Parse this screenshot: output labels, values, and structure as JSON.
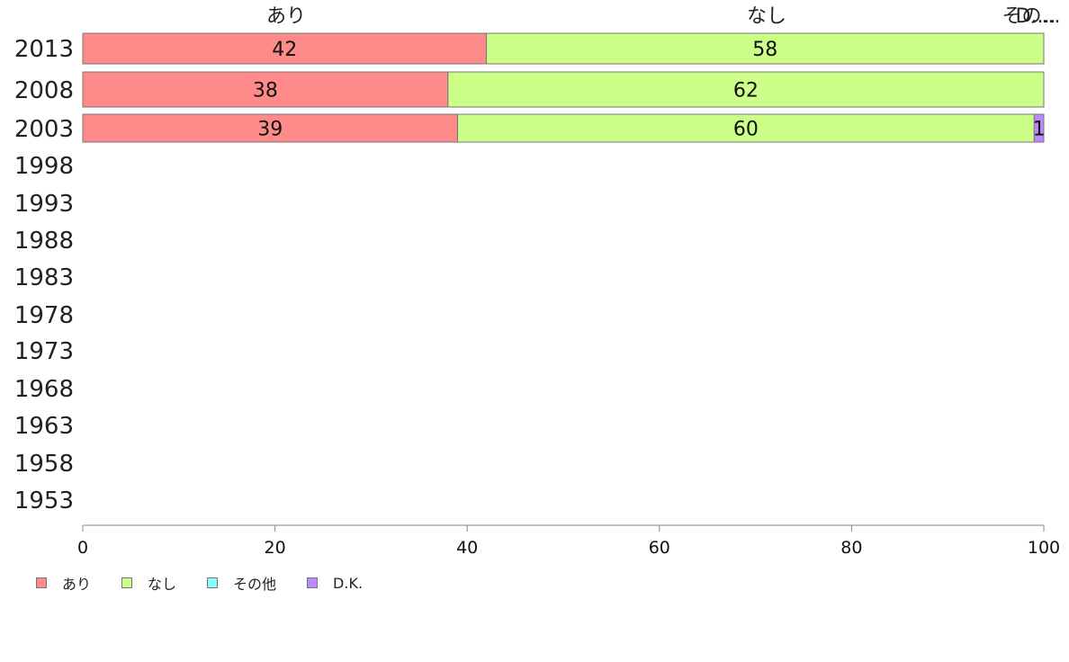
{
  "chart_data": {
    "type": "bar",
    "orientation": "horizontal",
    "stacked": true,
    "categories": [
      "2013",
      "2008",
      "2003",
      "1998",
      "1993",
      "1988",
      "1983",
      "1978",
      "1973",
      "1968",
      "1963",
      "1958",
      "1953"
    ],
    "series": [
      {
        "name": "あり",
        "color": "#ff8a8a",
        "values": [
          42,
          38,
          39,
          null,
          null,
          null,
          null,
          null,
          null,
          null,
          null,
          null,
          null
        ]
      },
      {
        "name": "なし",
        "color": "#ccff88",
        "values": [
          58,
          62,
          60,
          null,
          null,
          null,
          null,
          null,
          null,
          null,
          null,
          null,
          null
        ]
      },
      {
        "name": "その他",
        "color": "#88ffff",
        "values": [
          0,
          0,
          0,
          null,
          null,
          null,
          null,
          null,
          null,
          null,
          null,
          null,
          null
        ]
      },
      {
        "name": "D.K.",
        "color": "#bb88ff",
        "values": [
          0,
          0,
          1,
          null,
          null,
          null,
          null,
          null,
          null,
          null,
          null,
          null,
          null
        ]
      }
    ],
    "top_labels": [
      "あり",
      "なし",
      "その...",
      "D...."
    ],
    "xlim": [
      0,
      100
    ],
    "x_ticks": [
      "0",
      "20",
      "40",
      "60",
      "80",
      "100"
    ],
    "grid": false,
    "legend_position": "bottom-left"
  }
}
